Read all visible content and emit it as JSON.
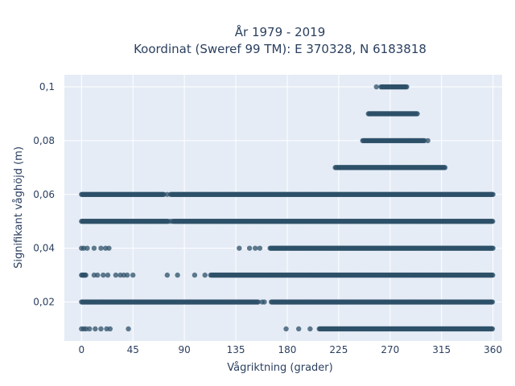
{
  "chart_data": {
    "type": "scatter",
    "title_line1": "År 1979 - 2019",
    "title_line2": "Koordinat (Sweref 99 TM): E 370328, N 6183818",
    "xlabel": "Vågriktning (grader)",
    "ylabel": "Signifikant våghöjd (m)",
    "xlim": [
      -15,
      368
    ],
    "ylim": [
      0.0055,
      0.1045
    ],
    "xticks": [
      0,
      45,
      90,
      135,
      180,
      225,
      270,
      315,
      360
    ],
    "yticks": [
      0.02,
      0.04,
      0.06,
      0.08,
      0.1
    ],
    "ytick_labels": [
      "0,02",
      "0,04",
      "0,06",
      "0,08",
      "0,1"
    ],
    "grid": true,
    "legend": "none",
    "colors": {
      "marker": "#2e5068",
      "plot_bg": "#e5ecf6",
      "grid": "#ffffff",
      "text": "#2a3f5f"
    },
    "rows": [
      {
        "y": 0.1,
        "dense_ranges": [
          [
            262,
            285
          ]
        ],
        "isolated": [
          258
        ]
      },
      {
        "y": 0.09,
        "dense_ranges": [
          [
            251,
            294
          ]
        ],
        "isolated": []
      },
      {
        "y": 0.08,
        "dense_ranges": [
          [
            246,
            300
          ]
        ],
        "isolated": [
          303
        ]
      },
      {
        "y": 0.07,
        "dense_ranges": [
          [
            222,
            318
          ]
        ],
        "isolated": []
      },
      {
        "y": 0.06,
        "dense_ranges": [
          [
            0,
            72
          ],
          [
            78,
            360
          ]
        ],
        "isolated": [
          75
        ]
      },
      {
        "y": 0.05,
        "dense_ranges": [
          [
            0,
            76
          ],
          [
            80,
            360
          ]
        ],
        "isolated": [
          78
        ]
      },
      {
        "y": 0.04,
        "dense_ranges": [
          [
            165,
            360
          ]
        ],
        "isolated": [
          0,
          2,
          5,
          11,
          17,
          21,
          24,
          138,
          147,
          152,
          156
        ]
      },
      {
        "y": 0.03,
        "dense_ranges": [
          [
            0,
            4
          ],
          [
            113,
            360
          ]
        ],
        "isolated": [
          11,
          14,
          19,
          23,
          30,
          34,
          37,
          40,
          45,
          75,
          84,
          99,
          108
        ]
      },
      {
        "y": 0.02,
        "dense_ranges": [
          [
            0,
            155
          ],
          [
            166,
            360
          ]
        ],
        "isolated": [
          158,
          160
        ]
      },
      {
        "y": 0.01,
        "dense_ranges": [
          [
            208,
            360
          ]
        ],
        "isolated": [
          0,
          2,
          4,
          7,
          12,
          17,
          22,
          25,
          41,
          179,
          190,
          200
        ]
      }
    ]
  }
}
